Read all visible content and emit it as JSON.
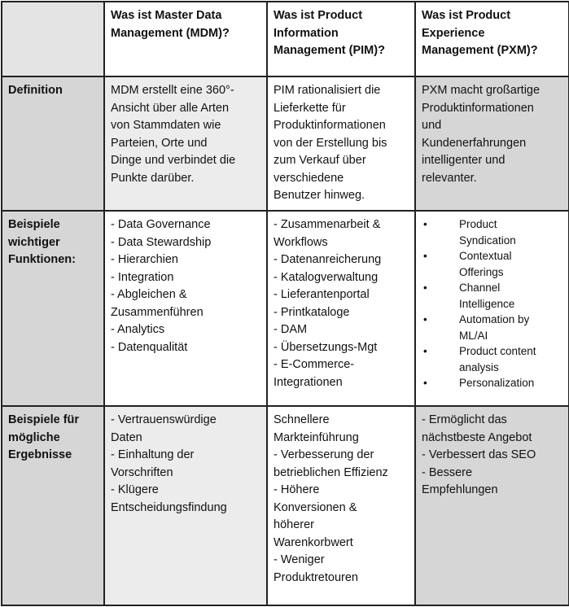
{
  "table": {
    "header": [
      [
        "Was ist Master Data",
        "Management (MDM)?"
      ],
      [
        "Was ist Product",
        "Information",
        "Management (PIM)?"
      ],
      [
        "Was ist Product",
        "Experience",
        "Management (PXM)?"
      ]
    ],
    "rows": [
      {
        "label": [
          "Definition"
        ],
        "cells": [
          {
            "lines": [
              "MDM erstellt eine 360°-",
              "Ansicht über alle Arten",
              "von Stammdaten wie",
              "Parteien, Orte und",
              "Dinge und verbindet die",
              "Punkte darüber."
            ]
          },
          {
            "lines": [
              "PIM rationalisiert die",
              "Lieferkette für",
              "Produktinformationen",
              "von der Erstellung bis",
              "zum Verkauf über",
              "verschiedene",
              "Benutzer hinweg."
            ]
          },
          {
            "lines": [
              "PXM macht großartige",
              "Produktinformationen",
              "und",
              "Kundenerfahrungen",
              "intelligenter und",
              "relevanter."
            ]
          }
        ]
      },
      {
        "label": [
          "Beispiele",
          "wichtiger",
          "Funktionen:"
        ],
        "cells": [
          {
            "lines": [
              "- Data Governance",
              "- Data Stewardship",
              "- Hierarchien",
              "- Integration",
              "- Abgleichen &",
              "Zusammenführen",
              "- Analytics",
              "- Datenqualität"
            ]
          },
          {
            "lines": [
              "- Zusammenarbeit &",
              "Workflows",
              "- Datenanreicherung",
              "- Katalogverwaltung",
              "- Lieferantenportal",
              "- Printkataloge",
              "- DAM",
              "- Übersetzungs-Mgt",
              "- E-Commerce-",
              "Integrationen"
            ]
          },
          {
            "bullets": [
              [
                "Product",
                "Syndication"
              ],
              [
                "Contextual",
                "Offerings"
              ],
              [
                "Channel",
                "Intelligence"
              ],
              [
                "Automation by",
                "ML/AI"
              ],
              [
                "Product content",
                "analysis"
              ],
              [
                "Personalization"
              ]
            ]
          }
        ]
      },
      {
        "label": [
          "Beispiele für",
          "mögliche",
          "Ergebnisse"
        ],
        "cells": [
          {
            "lines": [
              "- Vertrauenswürdige",
              "Daten",
              "- Einhaltung der",
              "Vorschriften",
              "- Klügere",
              "Entscheidungsfindung"
            ]
          },
          {
            "lines": [
              "Schnellere",
              "Markteinführung",
              "- Verbesserung der",
              "betrieblichen Effizienz",
              "- Höhere",
              "Konversionen &",
              "höherer",
              "Warenkorbwert",
              "- Weniger",
              "Produktretouren"
            ]
          },
          {
            "lines": [
              "- Ermöglicht das",
              "nächstbeste Angebot",
              "- Verbessert das SEO",
              "- Bessere",
              "Empfehlungen"
            ]
          }
        ]
      }
    ]
  }
}
